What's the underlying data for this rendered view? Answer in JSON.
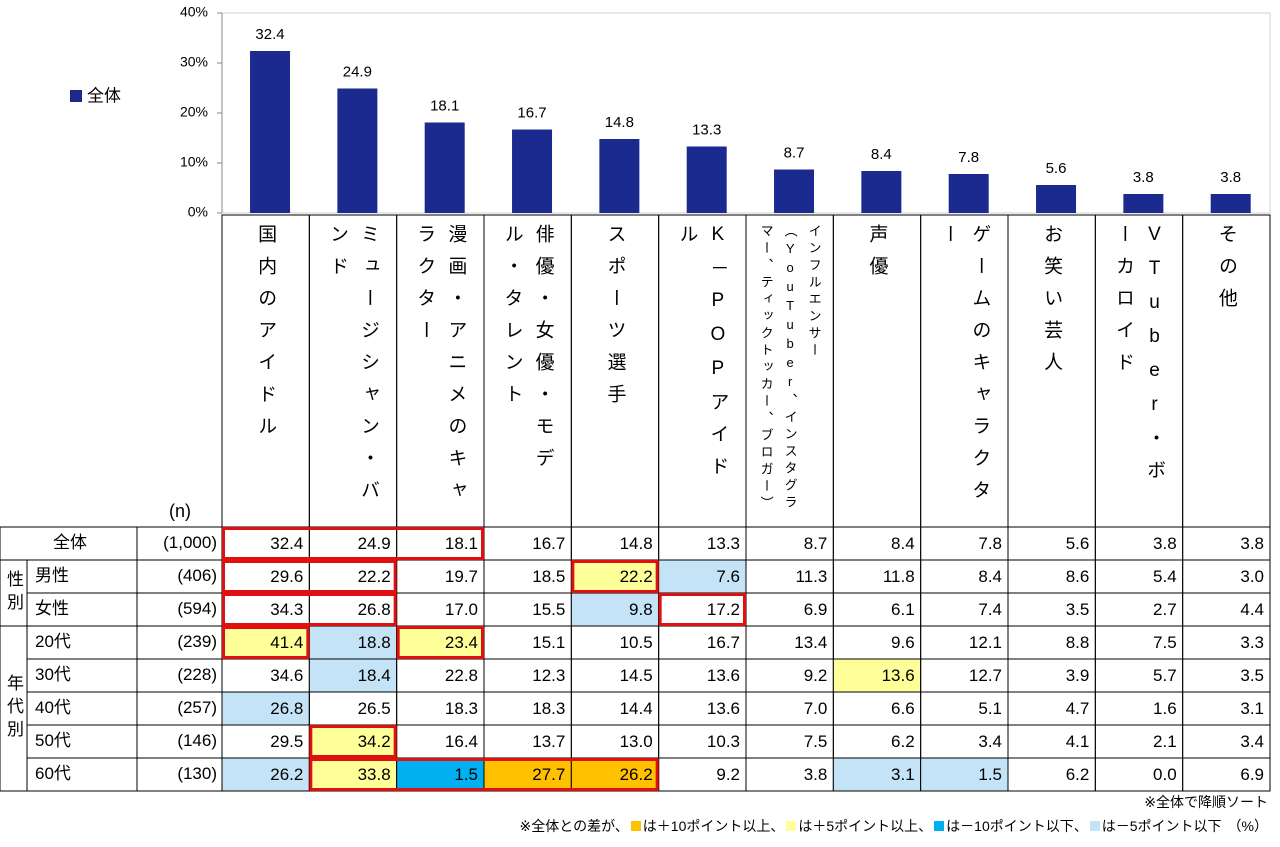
{
  "chart_data": {
    "type": "bar",
    "categories": [
      "国内のアイドル",
      "ミュージシャン・バンド",
      "漫画・アニメのキャラクター",
      "俳優・女優・モデル・タレント",
      "スポーツ選手",
      "K－POPアイドル",
      "インフルエンサー（YouTuber、インスタグラマー、ティックトッカー、ブロガー）",
      "声優",
      "ゲームのキャラクター",
      "お笑い芸人",
      "VTuber・ボーカロイド",
      "その他"
    ],
    "series": [
      {
        "name": "全体",
        "color": "#1B2A8F",
        "values": [
          32.4,
          24.9,
          18.1,
          16.7,
          14.8,
          13.3,
          8.7,
          8.4,
          7.8,
          5.6,
          3.8,
          3.8
        ]
      }
    ],
    "ylim": [
      0,
      40
    ],
    "yticks": [
      {
        "value": 0,
        "label": "0%"
      },
      {
        "value": 10,
        "label": "10%"
      },
      {
        "value": 20,
        "label": "20%"
      },
      {
        "value": 30,
        "label": "30%"
      },
      {
        "value": 40,
        "label": "40%"
      }
    ],
    "legend_position": "upper left"
  },
  "table": {
    "n_header": "(n)",
    "total": {
      "label": "全体",
      "n": "(1,000)",
      "values": [
        "32.4",
        "24.9",
        "18.1",
        "16.7",
        "14.8",
        "13.3",
        "8.7",
        "8.4",
        "7.8",
        "5.6",
        "3.8",
        "3.8"
      ],
      "colors": [
        null,
        null,
        null,
        null,
        null,
        null,
        null,
        null,
        null,
        null,
        null,
        null
      ],
      "boxed": [
        true,
        true,
        true,
        false,
        false,
        false,
        false,
        false,
        false,
        false,
        false,
        false
      ]
    },
    "groups": [
      {
        "label": "性別",
        "rows": [
          {
            "label": "男性",
            "n": "(406)",
            "values": [
              "29.6",
              "22.2",
              "19.7",
              "18.5",
              "22.2",
              "7.6",
              "11.3",
              "11.8",
              "8.4",
              "8.6",
              "5.4",
              "3.0"
            ],
            "colors": [
              null,
              null,
              null,
              null,
              "#FFFF99",
              "#C5E3F6",
              null,
              null,
              null,
              null,
              null,
              null
            ],
            "boxed": [
              true,
              true,
              false,
              false,
              true,
              false,
              false,
              false,
              false,
              false,
              false,
              false
            ]
          },
          {
            "label": "女性",
            "n": "(594)",
            "values": [
              "34.3",
              "26.8",
              "17.0",
              "15.5",
              "9.8",
              "17.2",
              "6.9",
              "6.1",
              "7.4",
              "3.5",
              "2.7",
              "4.4"
            ],
            "colors": [
              null,
              null,
              null,
              null,
              "#C5E3F6",
              null,
              null,
              null,
              null,
              null,
              null,
              null
            ],
            "boxed": [
              true,
              true,
              false,
              false,
              false,
              true,
              false,
              false,
              false,
              false,
              false,
              false
            ]
          }
        ]
      },
      {
        "label": "年代別",
        "rows": [
          {
            "label": "20代",
            "n": "(239)",
            "values": [
              "41.4",
              "18.8",
              "23.4",
              "15.1",
              "10.5",
              "16.7",
              "13.4",
              "9.6",
              "12.1",
              "8.8",
              "7.5",
              "3.3"
            ],
            "colors": [
              "#FFFF99",
              "#C5E3F6",
              "#FFFF99",
              null,
              null,
              null,
              null,
              null,
              null,
              null,
              null,
              null
            ],
            "boxed": [
              true,
              false,
              true,
              false,
              false,
              false,
              false,
              false,
              false,
              false,
              false,
              false
            ]
          },
          {
            "label": "30代",
            "n": "(228)",
            "values": [
              "34.6",
              "18.4",
              "22.8",
              "12.3",
              "14.5",
              "13.6",
              "9.2",
              "13.6",
              "12.7",
              "3.9",
              "5.7",
              "3.5"
            ],
            "colors": [
              null,
              "#C5E3F6",
              null,
              null,
              null,
              null,
              null,
              "#FFFF99",
              null,
              null,
              null,
              null
            ],
            "boxed": [
              false,
              false,
              false,
              false,
              false,
              false,
              false,
              false,
              false,
              false,
              false,
              false
            ]
          },
          {
            "label": "40代",
            "n": "(257)",
            "values": [
              "26.8",
              "26.5",
              "18.3",
              "18.3",
              "14.4",
              "13.6",
              "7.0",
              "6.6",
              "5.1",
              "4.7",
              "1.6",
              "3.1"
            ],
            "colors": [
              "#C5E3F6",
              null,
              null,
              null,
              null,
              null,
              null,
              null,
              null,
              null,
              null,
              null
            ],
            "boxed": [
              false,
              false,
              false,
              false,
              false,
              false,
              false,
              false,
              false,
              false,
              false,
              false
            ]
          },
          {
            "label": "50代",
            "n": "(146)",
            "values": [
              "29.5",
              "34.2",
              "16.4",
              "13.7",
              "13.0",
              "10.3",
              "7.5",
              "6.2",
              "3.4",
              "4.1",
              "2.1",
              "3.4"
            ],
            "colors": [
              null,
              "#FFFF99",
              null,
              null,
              null,
              null,
              null,
              null,
              null,
              null,
              null,
              null
            ],
            "boxed": [
              false,
              true,
              false,
              false,
              false,
              false,
              false,
              false,
              false,
              false,
              false,
              false
            ]
          },
          {
            "label": "60代",
            "n": "(130)",
            "values": [
              "26.2",
              "33.8",
              "1.5",
              "27.7",
              "26.2",
              "9.2",
              "3.8",
              "3.1",
              "1.5",
              "6.2",
              "0.0",
              "6.9"
            ],
            "colors": [
              "#C5E3F6",
              "#FFFF99",
              "#00B0F0",
              "#FFC000",
              "#FFC000",
              null,
              null,
              "#C5E3F6",
              "#C5E3F6",
              null,
              null,
              null
            ],
            "boxed": [
              false,
              true,
              true,
              true,
              true,
              false,
              false,
              false,
              false,
              false,
              false,
              false
            ]
          }
        ]
      }
    ]
  },
  "notes": {
    "sort": "※全体で降順ソート",
    "prefix": "※全体との差が、",
    "items": [
      {
        "color": "#FFC000",
        "label": "は＋10ポイント以上、"
      },
      {
        "color": "#FFFF99",
        "label": "は＋5ポイント以上、"
      },
      {
        "color": "#00B0F0",
        "label": "は－10ポイント以下、"
      },
      {
        "color": "#C5E3F6",
        "label": "は－5ポイント以下"
      }
    ],
    "suffix": "（%）"
  }
}
